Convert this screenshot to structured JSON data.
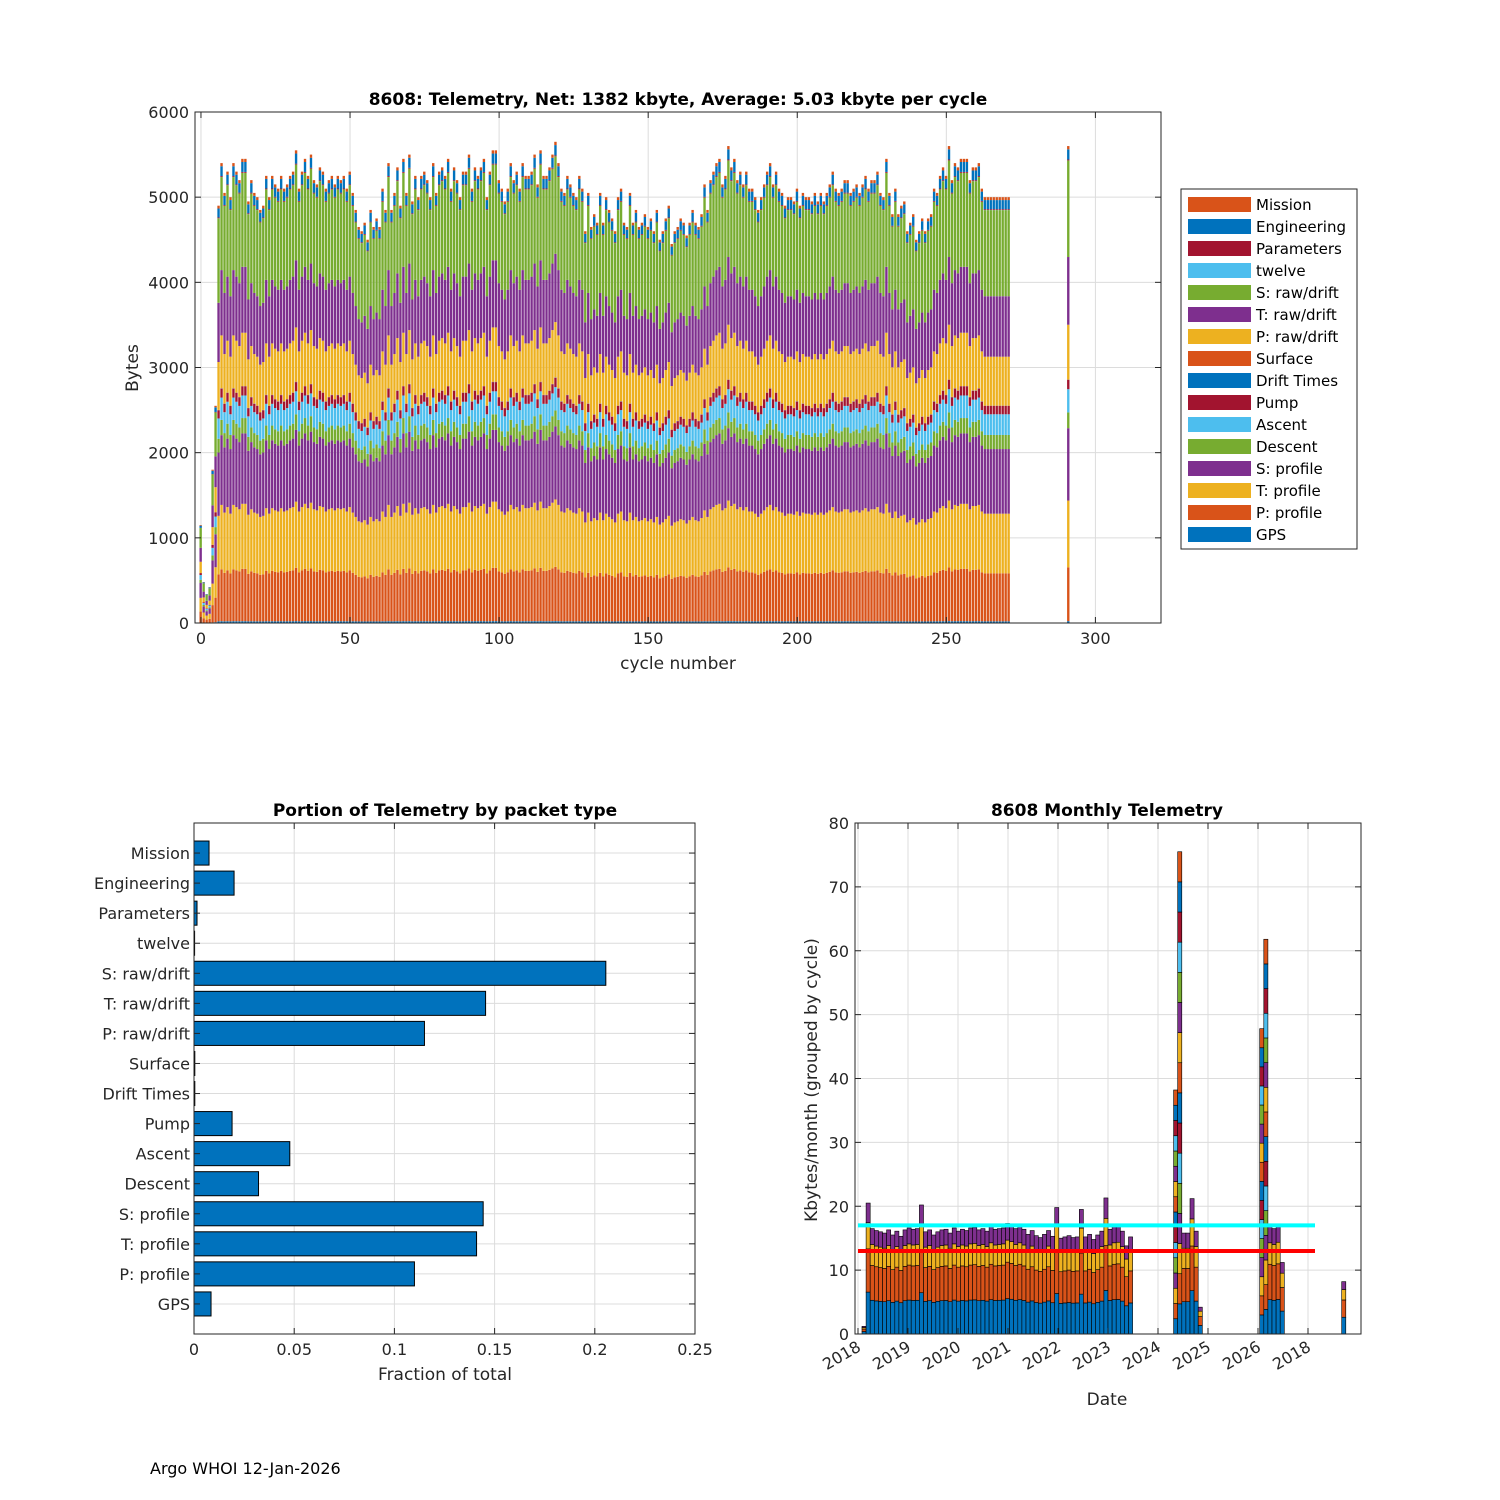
{
  "footer": "Argo WHOI 12-Jan-2026",
  "packet_types": [
    "GPS",
    "P: profile",
    "T: profile",
    "S: profile",
    "Descent",
    "Ascent",
    "Pump",
    "Drift Times",
    "Surface",
    "P: raw/drift",
    "T: raw/drift",
    "S: raw/drift",
    "twelve",
    "Parameters",
    "Engineering",
    "Mission"
  ],
  "colors": {
    "GPS": "#0072BD",
    "P: profile": "#D95319",
    "T: profile": "#EDB120",
    "S: profile": "#7E2F8E",
    "Descent": "#77AC30",
    "Ascent": "#4DBEEE",
    "Pump": "#A2142F",
    "Drift Times": "#0072BD",
    "Surface": "#D95319",
    "P: raw/drift": "#EDB120",
    "T: raw/drift": "#7E2F8E",
    "S: raw/drift": "#77AC30",
    "twelve": "#4DBEEE",
    "Parameters": "#A2142F",
    "Engineering": "#0072BD",
    "Mission": "#D95319",
    "cyan_line": "#00FFFF",
    "red_line": "#FF0000"
  },
  "chart_data": [
    {
      "id": "telemetry-per-cycle",
      "type": "bar",
      "stacked": true,
      "title": "8608: Telemetry, Net:   1382 kbyte,  Average: 5.03 kbyte per cycle",
      "xlabel": "cycle number",
      "ylabel": "Bytes",
      "xlim": [
        -2,
        322
      ],
      "ylim": [
        0,
        6000
      ],
      "xticks": [
        0,
        50,
        100,
        150,
        200,
        250,
        300
      ],
      "yticks": [
        0,
        1000,
        2000,
        3000,
        4000,
        5000,
        6000
      ],
      "grid": true,
      "legend_position": "right",
      "legend": [
        "Mission",
        "Engineering",
        "Parameters",
        "twelve",
        "S: raw/drift",
        "T: raw/drift",
        "P: raw/drift",
        "Surface",
        "Drift Times",
        "Pump",
        "Ascent",
        "Descent",
        "S: profile",
        "T: profile",
        "P: profile",
        "GPS"
      ],
      "cycle_range": [
        0,
        271
      ],
      "extra_cycle": 291,
      "typical_cycle_bytes": {
        "GPS": 20,
        "P: profile": 580,
        "T: profile": 720,
        "S: profile": 780,
        "Descent": 170,
        "Ascent": 250,
        "Pump": 100,
        "Drift Times": 2,
        "Surface": 3,
        "P: raw/drift": 590,
        "T: raw/drift": 730,
        "S: raw/drift": 1040,
        "twelve": 1,
        "Parameters": 10,
        "Engineering": 110,
        "Mission": 35
      },
      "profile_totals_bytes": [
        1150,
        480,
        340,
        420,
        1800,
        2550,
        4900,
        5400,
        5050,
        5300,
        5000,
        5400,
        5300,
        5200,
        5450,
        5450,
        4950,
        5200,
        5050,
        5000,
        4850,
        4900,
        5250,
        5000,
        5250,
        5150,
        5100,
        5250,
        5100,
        5150,
        5250,
        5300,
        5550,
        5100,
        5300,
        5450,
        5250,
        5500,
        5200,
        5150,
        5350,
        5300,
        5100,
        5200,
        5250,
        5150,
        5250,
        5200,
        5250,
        5100,
        5300,
        5050,
        4850,
        4650,
        4600,
        4700,
        4500,
        4850,
        4650,
        4750,
        4650,
        5100,
        4850,
        5400,
        4850,
        5050,
        5350,
        4900,
        5450,
        5050,
        5500,
        4950,
        5250,
        5000,
        5250,
        5300,
        5200,
        5000,
        5400,
        5050,
        5300,
        5350,
        5250,
        5450,
        5100,
        5350,
        5200,
        5000,
        5300,
        5300,
        5500,
        5100,
        5350,
        5250,
        5350,
        5450,
        5000,
        5300,
        5550,
        5550,
        5200,
        5100,
        4950,
        5100,
        5400,
        5200,
        5300,
        5100,
        5400,
        5250,
        5250,
        5300,
        5500,
        5150,
        5550,
        5250,
        5250,
        5350,
        5500,
        5650,
        5400,
        5100,
        5050,
        5250,
        5150,
        5050,
        5000,
        5250,
        5100,
        4600,
        5050,
        4650,
        4800,
        4700,
        5050,
        4700,
        5000,
        4850,
        4750,
        4600,
        5000,
        5100,
        4700,
        4650,
        5050,
        4700,
        4850,
        4650,
        4700,
        4800,
        4650,
        4750,
        4600,
        4850,
        4500,
        4600,
        4750,
        4900,
        4450,
        4600,
        4650,
        4750,
        4700,
        4550,
        4700,
        4850,
        4700,
        4650,
        4800,
        5150,
        4850,
        5200,
        5300,
        5400,
        5450,
        5150,
        5250,
        5600,
        5350,
        5450,
        5200,
        5300,
        5150,
        5300,
        5100,
        5100,
        5000,
        4850,
        5000,
        5150,
        5300,
        5400,
        5150,
        5300,
        5100,
        5050,
        4900,
        5000,
        5000,
        4950,
        5100,
        4900,
        5050,
        5000,
        5000,
        4950,
        5050,
        4950,
        5050,
        4950,
        5050,
        5150,
        5300,
        5100,
        5050,
        5100,
        5200,
        5200,
        5050,
        5100,
        5150,
        5050,
        5150,
        5250,
        5100,
        5200,
        5200,
        5300,
        5050,
        5000,
        5450,
        5050,
        4800,
        5100,
        4800,
        4900,
        4950,
        4600,
        4700,
        4800,
        4500,
        4600,
        4750,
        4600,
        4750,
        4800,
        5100,
        5050,
        5250,
        5350,
        5250,
        5600,
        5200,
        5400,
        5350,
        5450,
        5450,
        5450,
        5200,
        5350,
        5350,
        5400,
        5100
      ]
    },
    {
      "id": "portion-by-packet-type",
      "type": "bar",
      "orientation": "horizontal",
      "title": "Portion of Telemetry by packet type",
      "xlabel": "Fraction of total",
      "ylabel": "",
      "xlim": [
        0,
        0.25
      ],
      "xticks": [
        0,
        0.05,
        0.1,
        0.15,
        0.2,
        0.25
      ],
      "xtick_labels": [
        "0",
        "0.05",
        "0.1",
        "0.15",
        "0.2",
        "0.25"
      ],
      "grid": true,
      "categories": [
        "Mission",
        "Engineering",
        "Parameters",
        "twelve",
        "S: raw/drift",
        "T: raw/drift",
        "P: raw/drift",
        "Surface",
        "Drift Times",
        "Pump",
        "Ascent",
        "Descent",
        "S: profile",
        "T: profile",
        "P: profile",
        "GPS"
      ],
      "values": [
        0.0075,
        0.02,
        0.0015,
        0.0003,
        0.2055,
        0.1455,
        0.115,
        0.0004,
        0.0004,
        0.019,
        0.0478,
        0.0322,
        0.1443,
        0.141,
        0.11,
        0.0085
      ]
    },
    {
      "id": "monthly-telemetry",
      "type": "bar",
      "stacked": true,
      "title": "8608 Monthly Telemetry",
      "xlabel": "Date",
      "ylabel": "Kbytes/month (grouped by cycle)",
      "ylim": [
        0,
        80
      ],
      "yticks": [
        0,
        10,
        20,
        30,
        40,
        50,
        60,
        70,
        80
      ],
      "xtick_labels": [
        "2018",
        "2019",
        "2020",
        "2021",
        "2022",
        "2023",
        "2024",
        "2025",
        "2026",
        "2018"
      ],
      "grid": true,
      "reference_lines": [
        {
          "name": "cyan-reference-line",
          "value": 17,
          "color": "#00FFFF"
        },
        {
          "name": "red-reference-line",
          "value": 13,
          "color": "#FF0000"
        }
      ],
      "month_totals_kbytes": [
        1.2,
        20.5,
        16.5,
        16.2,
        16.0,
        15.8,
        16.3,
        15.5,
        16.1,
        15.3,
        16.3,
        16.6,
        16.4,
        16.5,
        20.2,
        16.0,
        16.3,
        15.5,
        16.0,
        16.3,
        16.4,
        15.8,
        16.6,
        16.1,
        16.4,
        16.2,
        16.6,
        16.7,
        16.3,
        16.5,
        16.1,
        16.8,
        16.4,
        16.5,
        16.6,
        17.3,
        17.0,
        16.5,
        16.8,
        16.4,
        15.6,
        16.2,
        15.4,
        15.1,
        15.6,
        16.2,
        15.3,
        19.8,
        15.0,
        15.2,
        15.4,
        15.1,
        15.2,
        19.5,
        15.2,
        15.6,
        14.8,
        15.5,
        16.1,
        21.3,
        16.4,
        16.8,
        16.9,
        16.1,
        13.8,
        15.2,
        0,
        0,
        0,
        0,
        0,
        0,
        0,
        0,
        0,
        0,
        38.2,
        75.5,
        15.8,
        15.8,
        21.2,
        16.1,
        4.2,
        0,
        0,
        0,
        0,
        0,
        0,
        0,
        0,
        0,
        0,
        0,
        0,
        0,
        0,
        47.8,
        61.8,
        16.8,
        16.5,
        16.9,
        11.2,
        0,
        0,
        0,
        0,
        0,
        0,
        0,
        0,
        0,
        0,
        0,
        0,
        0,
        0,
        8.2
      ],
      "month_composition_fraction": {
        "GPS": 0.32,
        "P: profile": 0.33,
        "T: profile": 0.2,
        "S: profile": 0.15
      }
    }
  ]
}
